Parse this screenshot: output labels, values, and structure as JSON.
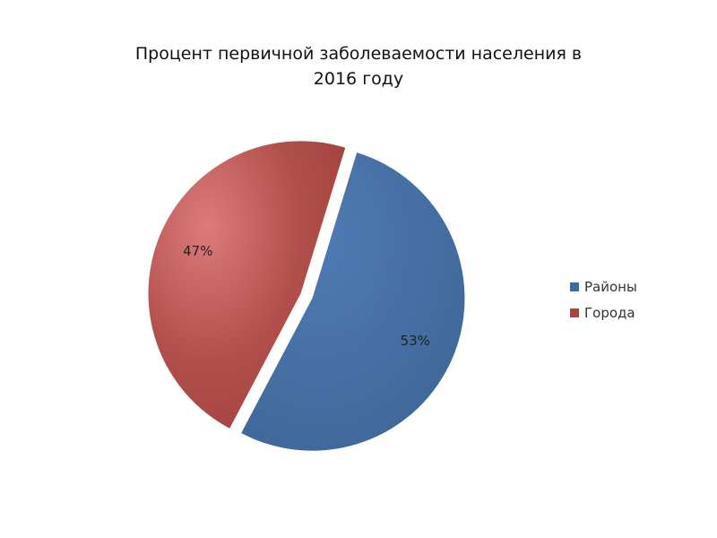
{
  "chart_data": {
    "type": "pie",
    "title_lines": [
      "Процент первичной заболеваемости населения в",
      "2016 году"
    ],
    "slices": [
      {
        "name": "Районы",
        "value": 53,
        "label": "53%",
        "color": "#426a9c"
      },
      {
        "name": "Города",
        "value": 47,
        "label": "47%",
        "color": "#a84442"
      }
    ],
    "legend_position": "right"
  }
}
